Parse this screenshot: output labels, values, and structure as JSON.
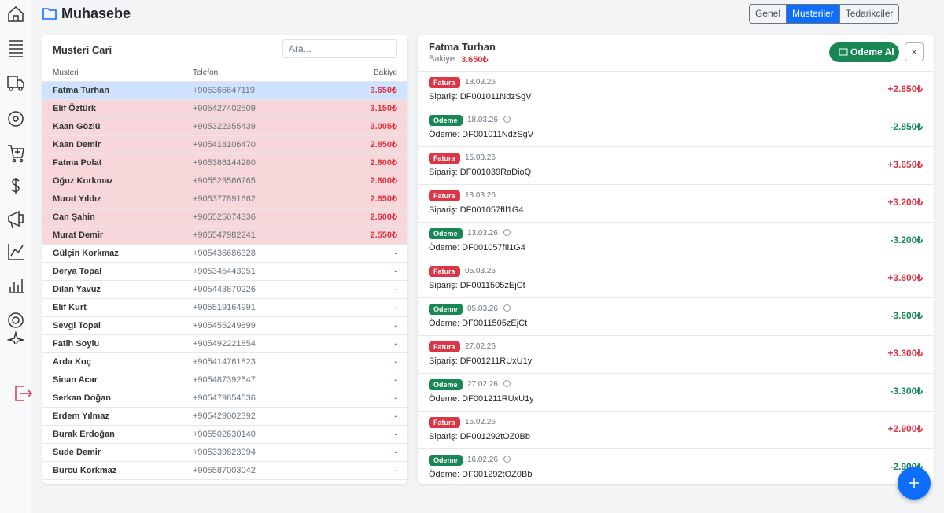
{
  "header": {
    "title": "Muhasebe",
    "tabs": [
      {
        "label": "Genel",
        "active": false
      },
      {
        "label": "Musteriler",
        "active": true
      },
      {
        "label": "Tedarikciler",
        "active": false
      }
    ]
  },
  "customers": {
    "title": "Musteri Cari",
    "search_placeholder": "Ara...",
    "columns": [
      "Musteri",
      "Telefon",
      "Bakiye"
    ],
    "rows": [
      {
        "name": "Fatma Turhan",
        "phone": "+905366647119",
        "balance": "3.650₺",
        "color": "#cfe2ff"
      },
      {
        "name": "Elif Öztürk",
        "phone": "+905427402509",
        "balance": "3.150₺",
        "color": "#f8d7da"
      },
      {
        "name": "Kaan Gözlü",
        "phone": "+905322355439",
        "balance": "3.005₺",
        "color": "#f8d7da"
      },
      {
        "name": "Kaan Demir",
        "phone": "+905418106470",
        "balance": "2.850₺",
        "color": "#f8d7da"
      },
      {
        "name": "Fatma Polat",
        "phone": "+905386144280",
        "balance": "2.800₺",
        "color": "#f8d7da"
      },
      {
        "name": "Oğuz Korkmaz",
        "phone": "+905523566765",
        "balance": "2.800₺",
        "color": "#f8d7da"
      },
      {
        "name": "Murat Yıldız",
        "phone": "+905377891662",
        "balance": "2.650₺",
        "color": "#f8d7da"
      },
      {
        "name": "Can Şahin",
        "phone": "+905525074336",
        "balance": "2.600₺",
        "color": "#f8d7da"
      },
      {
        "name": "Murat Demir",
        "phone": "+905547982241",
        "balance": "2.550₺",
        "color": "#f8d7da"
      },
      {
        "name": "Gülçin Korkmaz",
        "phone": "+905436686328",
        "balance": "-",
        "color": "#ffffff"
      },
      {
        "name": "Derya Topal",
        "phone": "+905345443951",
        "balance": "-",
        "color": "#ffffff"
      },
      {
        "name": "Dilan Yavuz",
        "phone": "+905443670226",
        "balance": "-",
        "color": "#ffffff"
      },
      {
        "name": "Elif Kurt",
        "phone": "+905519164991",
        "balance": "-",
        "color": "#ffffff"
      },
      {
        "name": "Sevgi Topal",
        "phone": "+905455249899",
        "balance": "-",
        "color": "#ffffff"
      },
      {
        "name": "Fatih Soylu",
        "phone": "+905492221854",
        "balance": "-",
        "color": "#ffffff"
      },
      {
        "name": "Arda Koç",
        "phone": "+905414761823",
        "balance": "-",
        "color": "#ffffff"
      },
      {
        "name": "Sinan Acar",
        "phone": "+905487392547",
        "balance": "-",
        "color": "#ffffff"
      },
      {
        "name": "Serkan Doğan",
        "phone": "+905479854536",
        "balance": "-",
        "color": "#ffffff"
      },
      {
        "name": "Erdem Yılmaz",
        "phone": "+905429002392",
        "balance": "-",
        "color": "#ffffff"
      },
      {
        "name": "Burak Erdoğan",
        "phone": "+905502630140",
        "balance": "-",
        "color": "#ffffff"
      },
      {
        "name": "Sude Demir",
        "phone": "+905339823994",
        "balance": "-",
        "color": "#ffffff"
      },
      {
        "name": "Burcu Korkmaz",
        "phone": "+905587003042",
        "balance": "-",
        "color": "#ffffff"
      }
    ]
  },
  "detail": {
    "name": "Fatma Turhan",
    "balance_label": "Bakiye:",
    "balance": "3.650₺",
    "button": "Odeme Al",
    "transactions": [
      {
        "badge": "Fatura",
        "date": "18.03.26",
        "info": false,
        "description": "Sipariş: DF001011NdzSgV",
        "amount": "+2.850₺",
        "color": "#dc3545"
      },
      {
        "badge": "Odeme",
        "date": "18.03.26",
        "info": true,
        "description": "Ödeme: DF001011NdzSgV",
        "amount": "-2.850₺",
        "color": "#198754"
      },
      {
        "badge": "Fatura",
        "date": "15.03.26",
        "info": false,
        "description": "Sipariş: DF001039RaDioQ",
        "amount": "+3.650₺",
        "color": "#dc3545"
      },
      {
        "badge": "Fatura",
        "date": "13.03.26",
        "info": false,
        "description": "Sipariş: DF001057fIl1G4",
        "amount": "+3.200₺",
        "color": "#dc3545"
      },
      {
        "badge": "Odeme",
        "date": "13.03.26",
        "info": true,
        "description": "Ödeme: DF001057fIl1G4",
        "amount": "-3.200₺",
        "color": "#198754"
      },
      {
        "badge": "Fatura",
        "date": "05.03.26",
        "info": false,
        "description": "Sipariş: DF0011505zEjCt",
        "amount": "+3.600₺",
        "color": "#dc3545"
      },
      {
        "badge": "Odeme",
        "date": "05.03.26",
        "info": true,
        "description": "Ödeme: DF0011505zEjCt",
        "amount": "-3.600₺",
        "color": "#198754"
      },
      {
        "badge": "Fatura",
        "date": "27.02.26",
        "info": false,
        "description": "Sipariş: DF001211RUxU1y",
        "amount": "+3.300₺",
        "color": "#dc3545"
      },
      {
        "badge": "Odeme",
        "date": "27.02.26",
        "info": true,
        "description": "Ödeme: DF001211RUxU1y",
        "amount": "-3.300₺",
        "color": "#198754"
      },
      {
        "badge": "Fatura",
        "date": "16.02.26",
        "info": false,
        "description": "Sipariş: DF001292tOZ0Bb",
        "amount": "+2.900₺",
        "color": "#dc3545"
      },
      {
        "badge": "Odeme",
        "date": "16.02.26",
        "info": true,
        "description": "Ödeme: DF001292tOZ0Bb",
        "amount": "-2.900₺",
        "color": "#198754"
      }
    ]
  }
}
